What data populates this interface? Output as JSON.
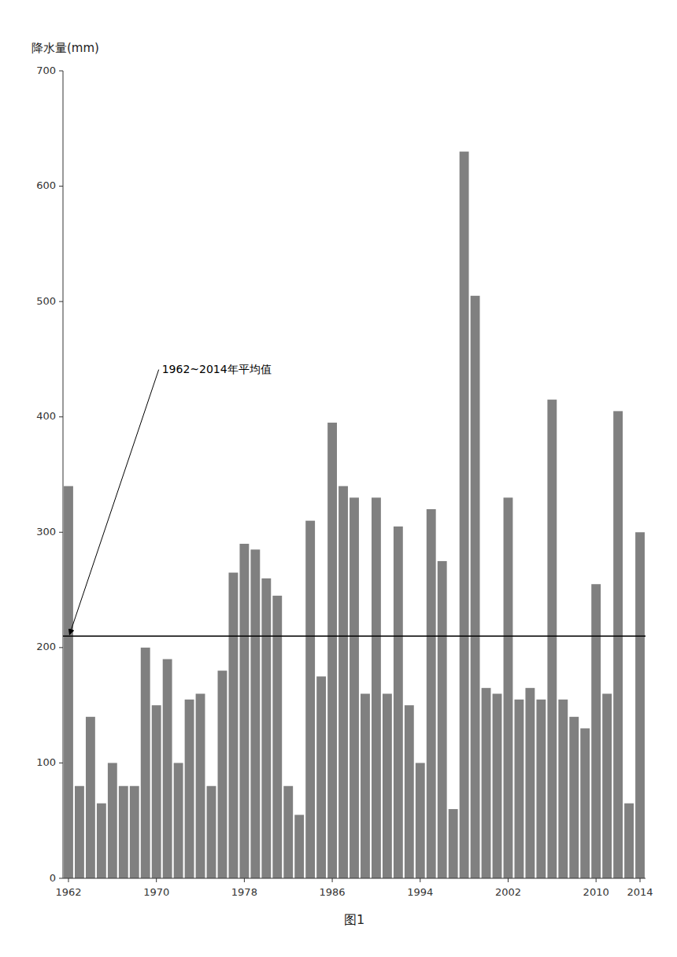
{
  "chart_data": {
    "type": "bar",
    "x_label": "图1",
    "y_label": "降水量(mm)",
    "categories": [
      "1962",
      null,
      null,
      null,
      null,
      null,
      null,
      null,
      "1970",
      null,
      null,
      null,
      null,
      null,
      null,
      null,
      "1978",
      null,
      null,
      null,
      null,
      null,
      null,
      null,
      "1986",
      null,
      null,
      null,
      null,
      null,
      null,
      null,
      "1994",
      null,
      null,
      null,
      null,
      null,
      null,
      null,
      "2002",
      null,
      null,
      null,
      null,
      null,
      null,
      null,
      "2010",
      null,
      null,
      null,
      "2014"
    ],
    "values": [
      340,
      80,
      140,
      65,
      100,
      80,
      80,
      200,
      150,
      190,
      100,
      155,
      160,
      80,
      180,
      265,
      290,
      285,
      260,
      245,
      80,
      55,
      310,
      175,
      395,
      340,
      330,
      160,
      330,
      160,
      305,
      150,
      100,
      320,
      275,
      60,
      630,
      505,
      165,
      160,
      330,
      155,
      165,
      155,
      415,
      155,
      140,
      130,
      255,
      160,
      405,
      65,
      300
    ],
    "color": "#808080",
    "average": 210,
    "average_label": "1962~2014年平均值",
    "ylim": [
      0,
      700
    ],
    "yticks": [
      0,
      100,
      200,
      300,
      400,
      500,
      600,
      700
    ],
    "grid": false
  }
}
